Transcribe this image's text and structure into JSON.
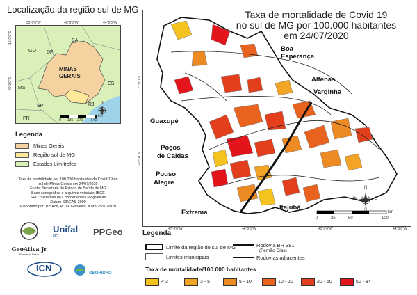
{
  "inset": {
    "title": "Localização da região sul de MG",
    "top_ticks": [
      "52°0'0\"W",
      "48°0'0\"W",
      "44°0'0\"W"
    ],
    "left_ticks": [
      "15°0'0\"S",
      "20°0'0\"S"
    ],
    "states": {
      "ba": "BA",
      "go": "GO",
      "df": "DF",
      "mg": "MINAS\nGERAIS",
      "ms": "MS",
      "sp": "SP",
      "rj": "RJ",
      "es": "ES",
      "pr": "PR"
    },
    "mg_label_1": "MINAS",
    "mg_label_2": "GERAIS",
    "scale_ticks": [
      "0",
      "135",
      "270",
      "540"
    ],
    "scale_unit": "km",
    "north": "N"
  },
  "legend_left": {
    "title": "Legenda",
    "items": [
      {
        "label": "Minas Gerais",
        "color": "#f6d2a0"
      },
      {
        "label": "Região sul de MG",
        "color": "#ffe89a"
      },
      {
        "label": "Estados Limítrofes",
        "color": "#d9f0b8"
      }
    ]
  },
  "credits": [
    "Taxa de mortalidade por 100.000 habitantes de Covid 19 no",
    "sul de Minas Gerais em 24/07/2020",
    "Fonte: Secretaria de Estado de Saúde de MG",
    "Base cartográfica e arquivos vetoriais: IBGE",
    "SRC: Sistemas de Coordenadas Geográficas",
    "Datum SIRGAS 2000",
    "Elaborado por: PISANI, R. J e Geoativa Jr em 25/07/2020"
  ],
  "logos": {
    "geoativa": "GeoAtiva Jr",
    "geoativa_sub": "Empresa Júnior",
    "unifal": "Unifal",
    "unifal_sub": "MG",
    "ppgeo": "PPGeo",
    "icn": "ICN",
    "geohidro": "GEOHIDRO"
  },
  "map": {
    "title_1": "Taxa de mortalidade de Covid 19",
    "title_2": "no sul de MG por 100.000 habitantes",
    "title_3": "em 24/07/2020",
    "cities": {
      "boa": "Boa",
      "esperanca": "Esperança",
      "alfenas": "Alfenas",
      "varginha": "Varginha",
      "guaxupe": "Guaxupé",
      "pocos1": "Poços",
      "pocos2": "de Caldas",
      "pouso1": "Pouso",
      "pouso2": "Alegre",
      "extrema": "Extrema",
      "itajuba": "Itajubá"
    },
    "scale_ticks": [
      "0",
      "25",
      "50",
      "100"
    ],
    "scale_unit": "km",
    "bottom_ticks": [
      "47°0'0\"W",
      "46°0'0\"W",
      "45°0'0\"W",
      "44°0'0\"W"
    ],
    "left_ticks": [
      "21°0'0\"S",
      "22°0'0\"S"
    ],
    "compass": {
      "n": "N",
      "s": "S",
      "e": "E",
      "w": "W"
    }
  },
  "legend_bottom": {
    "title": "Legenda",
    "limit_label": "Limite da região do sul de MG",
    "municipal_label": "Limites municipais",
    "road_main": "Rodovia BR 381",
    "road_main_sub": "(Fernão Dias)",
    "road_other": "Rodovias adjacentes",
    "classes_title": "Taxa de mortalidade/100.000 habitantes",
    "classes": [
      {
        "label": "< 3",
        "color": "#f6c21d"
      },
      {
        "label": "3 - 5",
        "color": "#f3a426"
      },
      {
        "label": "5 - 10",
        "color": "#ee8a24"
      },
      {
        "label": "10 - 20",
        "color": "#e9631f"
      },
      {
        "label": "20 - 50",
        "color": "#e43f1d"
      },
      {
        "label": "50 - 84",
        "color": "#e4141c"
      }
    ]
  }
}
